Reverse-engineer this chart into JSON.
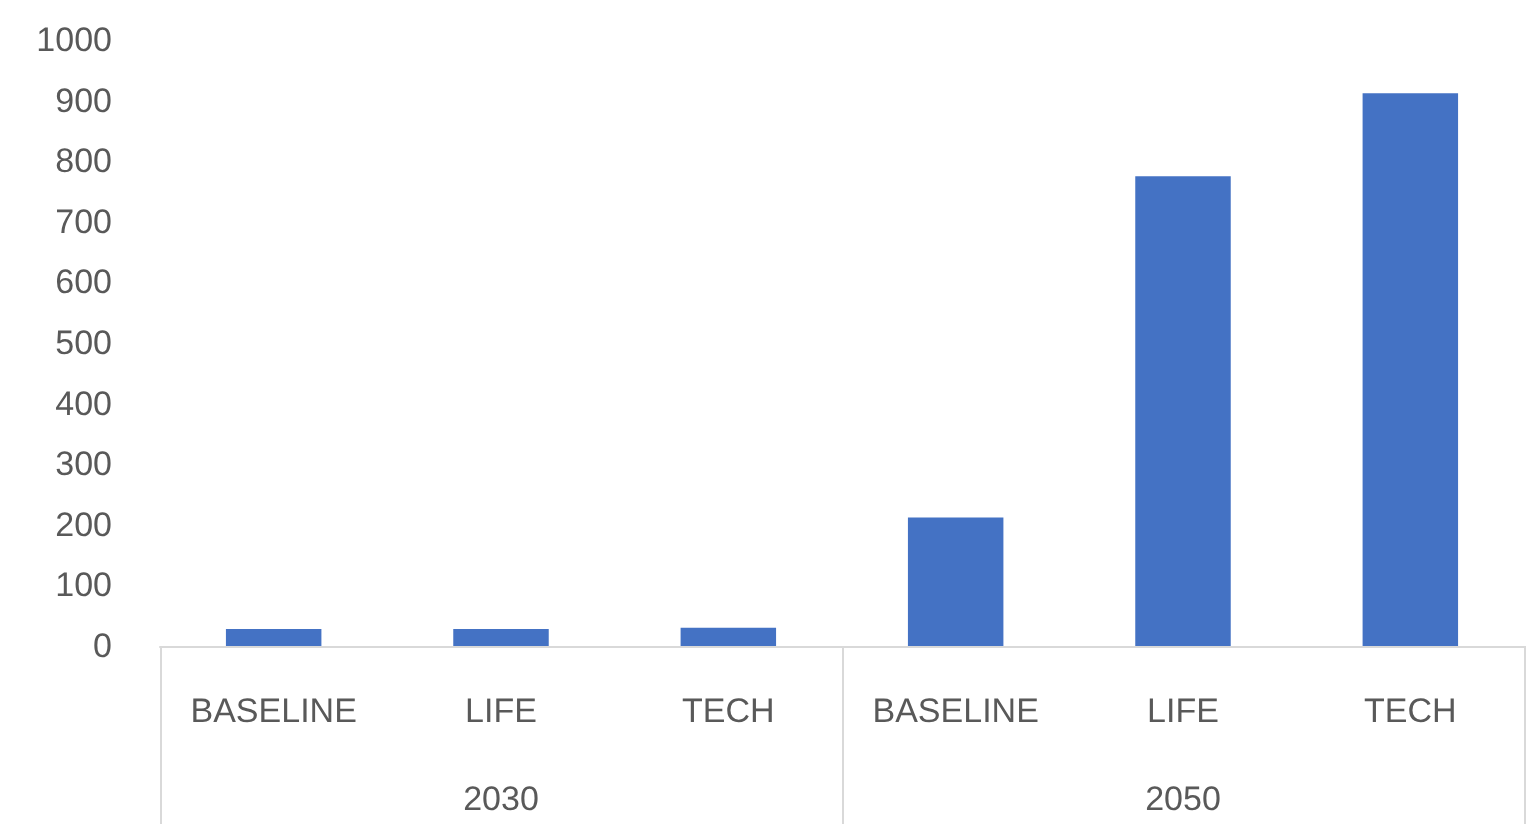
{
  "chart_data": {
    "type": "bar",
    "categories": [
      "BASELINE",
      "LIFE",
      "TECH",
      "BASELINE",
      "LIFE",
      "TECH"
    ],
    "values": [
      28,
      28,
      30,
      212,
      775,
      912
    ],
    "color": "#4472c4",
    "ylim": [
      0,
      1000
    ],
    "yticks": [
      0,
      100,
      200,
      300,
      400,
      500,
      600,
      700,
      800,
      900,
      1000
    ],
    "grid": false,
    "annotations": [
      "2030",
      "2050"
    ]
  }
}
